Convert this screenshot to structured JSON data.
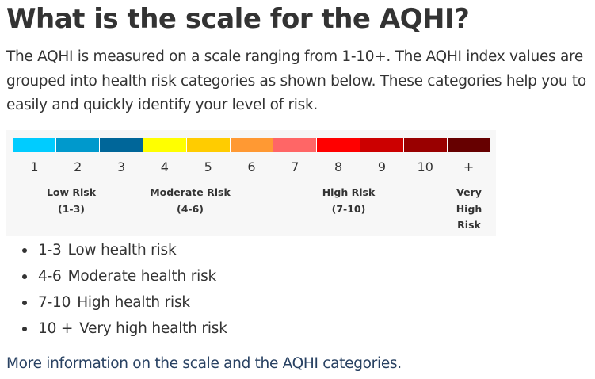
{
  "title": "What is the scale for the AQHI?",
  "intro": "The AQHI is measured on a scale ranging from 1-10+. The AQHI index values are grouped into health risk categories as shown below. These categories help you to easily and quickly identify your level of risk.",
  "scale": {
    "segments": [
      {
        "label": "1",
        "color": "#00ccff"
      },
      {
        "label": "2",
        "color": "#0099cc"
      },
      {
        "label": "3",
        "color": "#006699"
      },
      {
        "label": "4",
        "color": "#ffff00"
      },
      {
        "label": "5",
        "color": "#ffcc00"
      },
      {
        "label": "6",
        "color": "#ff9933"
      },
      {
        "label": "7",
        "color": "#ff6666"
      },
      {
        "label": "8",
        "color": "#ff0000"
      },
      {
        "label": "9",
        "color": "#cc0000"
      },
      {
        "label": "10",
        "color": "#990000"
      },
      {
        "label": "+",
        "color": "#660000"
      }
    ],
    "categories": {
      "low": {
        "name": "Low Risk",
        "range": "(1-3)"
      },
      "moderate": {
        "name": "Moderate Risk",
        "range": "(4-6)"
      },
      "high": {
        "name": "High Risk",
        "range": "(7-10)"
      },
      "very_high": {
        "line1": "Very",
        "line2": "High",
        "line3": "Risk"
      }
    }
  },
  "bullets": [
    {
      "range": "1-3",
      "text": "Low health risk"
    },
    {
      "range": "4-6",
      "text": "Moderate health risk"
    },
    {
      "range": "7-10",
      "text": "High health risk"
    },
    {
      "range": "10 +",
      "text": "Very high health risk"
    }
  ],
  "more_link": "More information on the scale and the AQHI categories."
}
